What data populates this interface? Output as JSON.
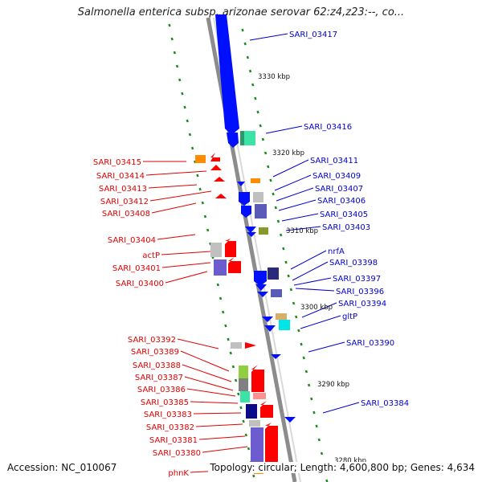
{
  "title": "Salmonella enterica subsp. arizonae serovar 62:z4,z23:--, co...",
  "footer": {
    "accession": "Accession: NC_010067",
    "summary": "Topology: circular; Length: 4,600,800 bp; Genes: 4,634"
  },
  "scale_labels": [
    "3330 kbp",
    "3320 kbp",
    "3310 kbp",
    "3300 kbp",
    "3290 kbp",
    "3280 kbp"
  ],
  "right_labels": [
    "SARI_03417",
    "SARI_03416",
    "SARI_03411",
    "SARI_03409",
    "SARI_03407",
    "SARI_03406",
    "SARI_03405",
    "SARI_03403",
    "nrfA",
    "SARI_03398",
    "SARI_03397",
    "SARI_03396",
    "SARI_03394",
    "gltP",
    "SARI_03390",
    "SARI_03384"
  ],
  "left_labels": [
    "SARI_03415",
    "SARI_03414",
    "SARI_03413",
    "SARI_03412",
    "SARI_03408",
    "SARI_03404",
    "actP",
    "SARI_03401",
    "SARI_03400",
    "SARI_03392",
    "SARI_03389",
    "SARI_03388",
    "SARI_03387",
    "SARI_03386",
    "SARI_03385",
    "SARI_03383",
    "SARI_03382",
    "SARI_03381",
    "SARI_03380",
    "phnK"
  ],
  "colors": {
    "backbone": "#8c8c8c",
    "right_label": "#0000cc",
    "left_label": "#e00000",
    "dashes": "#1e8a1e",
    "forward_gene": "#ff0000",
    "reverse_gene": "#0000ff"
  }
}
